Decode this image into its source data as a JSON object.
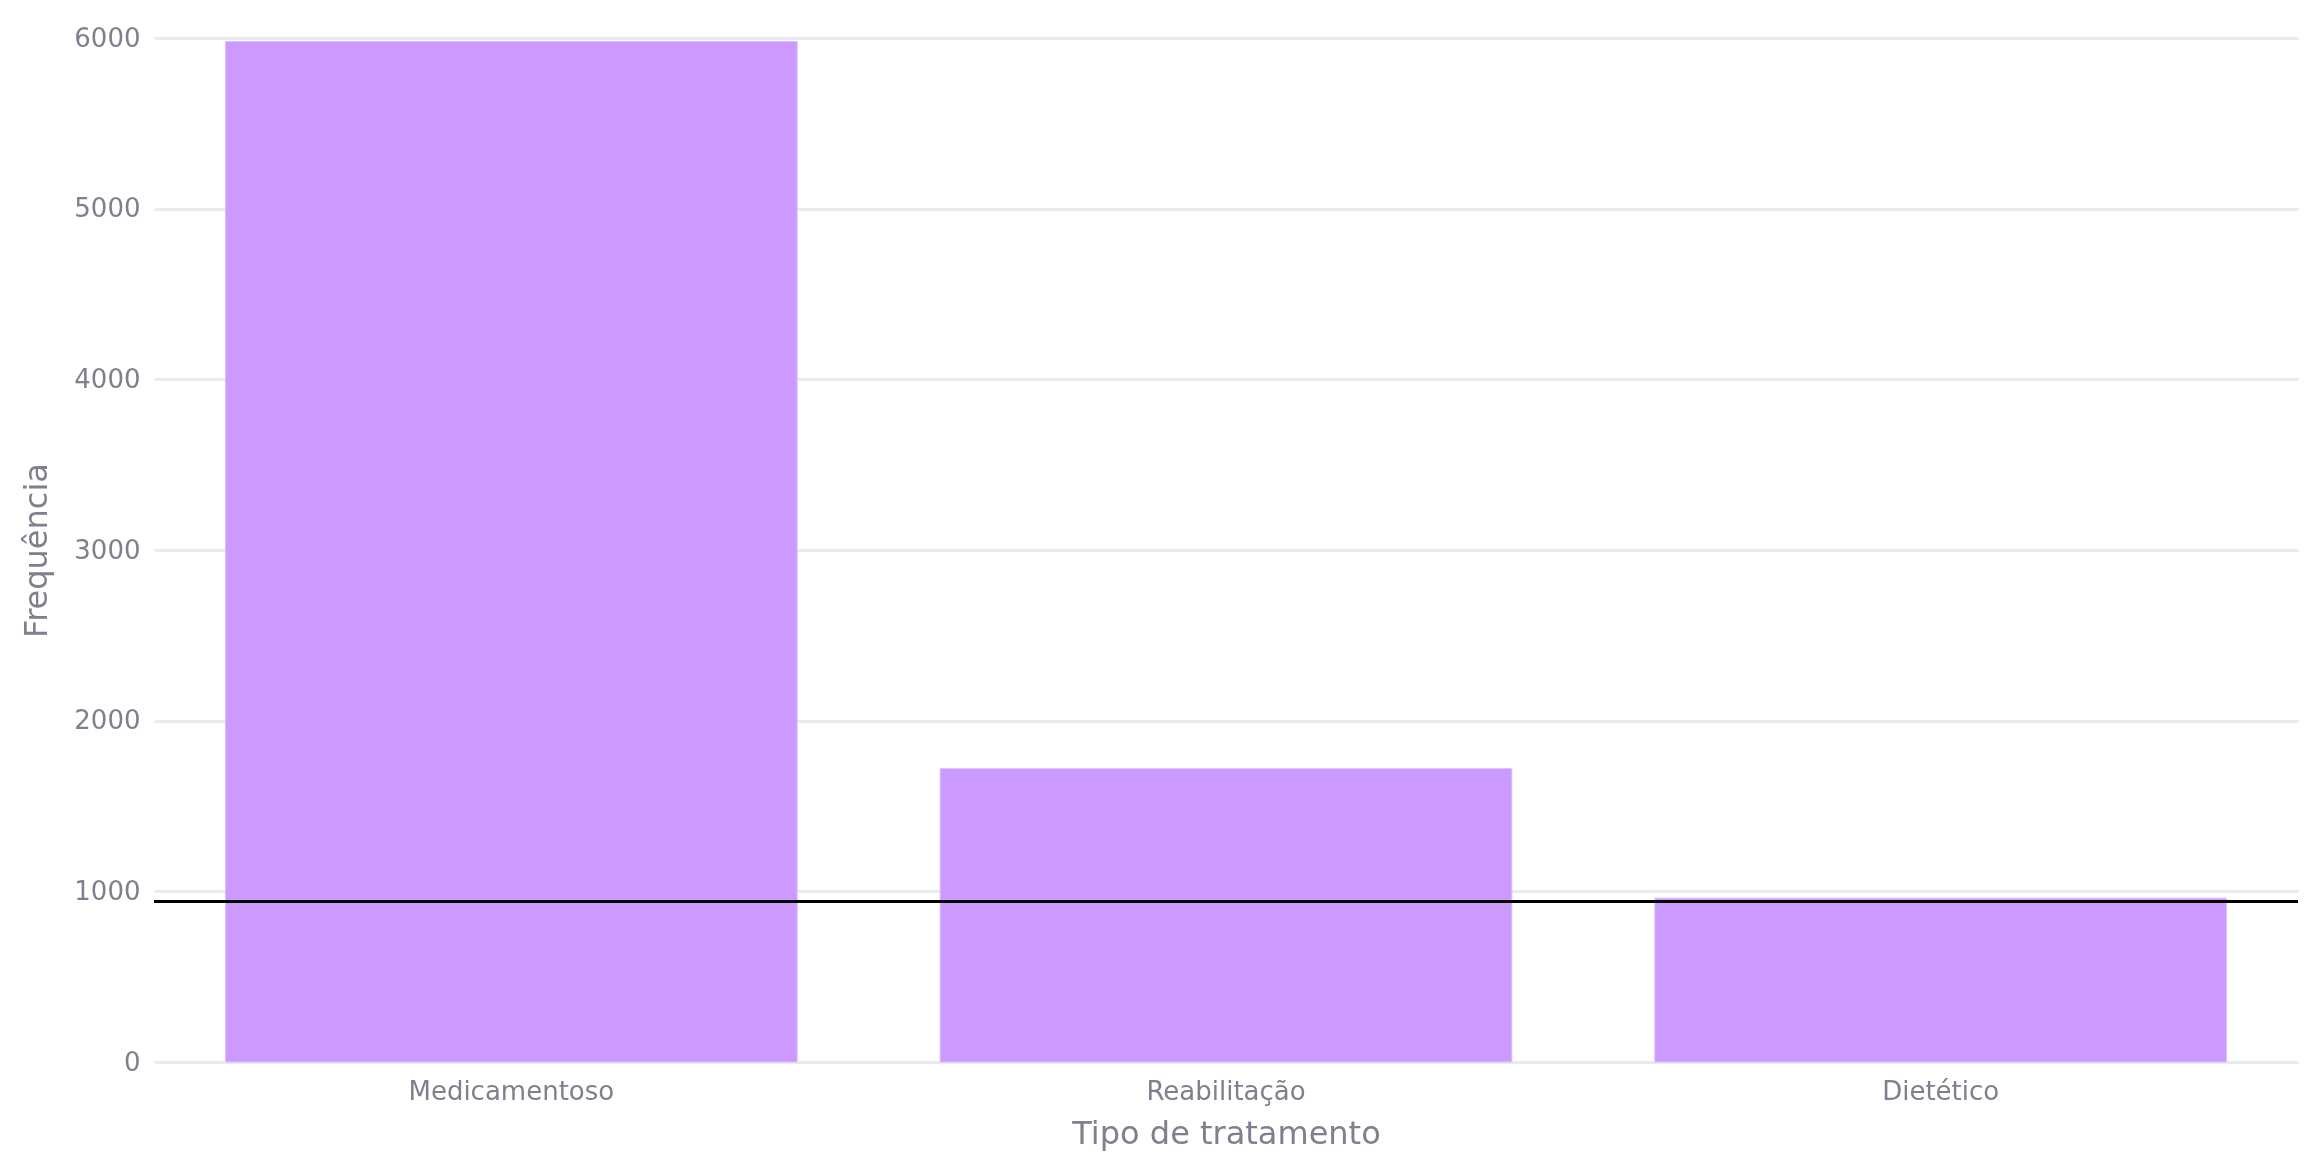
{
  "chart_data": {
    "type": "bar",
    "xlabel": "Tipo de tratamento",
    "ylabel": "Frequência",
    "categories": [
      "Medicamentoso",
      "Reabilitação",
      "Dietético"
    ],
    "values": [
      5980,
      1720,
      960
    ],
    "color": "#cc99ff",
    "ylim": [
      0,
      6000
    ],
    "yticks": [
      0,
      1000,
      2000,
      3000,
      4000,
      5000,
      6000
    ],
    "grid": "y",
    "ref_lines": [
      {
        "axis": "y",
        "value": 940,
        "color": "#000000"
      }
    ]
  }
}
